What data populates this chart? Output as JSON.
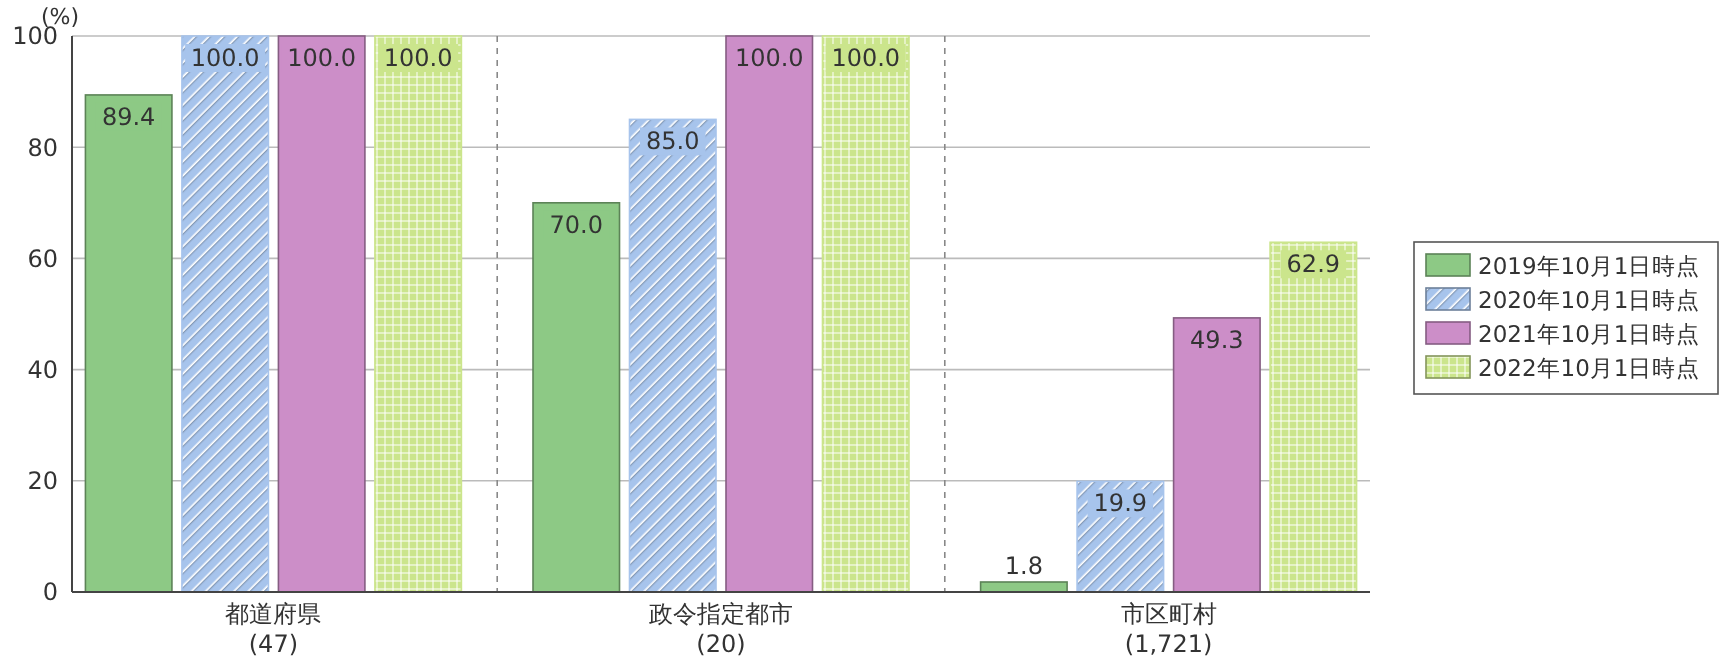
{
  "chart_data": {
    "type": "bar",
    "ylabel": "(%)",
    "categories": [
      "都道府県\n(47)",
      "政令指定都市\n(20)",
      "市区町村\n(1,721)"
    ],
    "ylim": [
      0,
      100
    ],
    "yticks": [
      0,
      20,
      40,
      60,
      80,
      100
    ],
    "grid": "y",
    "legend": "right",
    "series": [
      {
        "name": "2019年10月1日時点",
        "color": "#8dc985",
        "values": [
          89.4,
          70.0,
          1.8
        ],
        "value_labels": [
          "89.4",
          "70.0",
          "1.8"
        ]
      },
      {
        "name": "2020年10月1日時点",
        "color": "#a7c4ec",
        "values": [
          100.0,
          85.0,
          19.9
        ],
        "value_labels": [
          "100.0",
          "85.0",
          "19.9"
        ]
      },
      {
        "name": "2021年10月1日時点",
        "color": "#cc8ec8",
        "values": [
          100.0,
          100.0,
          49.3
        ],
        "value_labels": [
          "100.0",
          "100.0",
          "49.3"
        ]
      },
      {
        "name": "2022年10月1日時点",
        "color": "#cbe58c",
        "values": [
          100.0,
          100.0,
          62.9
        ],
        "value_labels": [
          "100.0",
          "100.0",
          "62.9"
        ]
      }
    ]
  }
}
